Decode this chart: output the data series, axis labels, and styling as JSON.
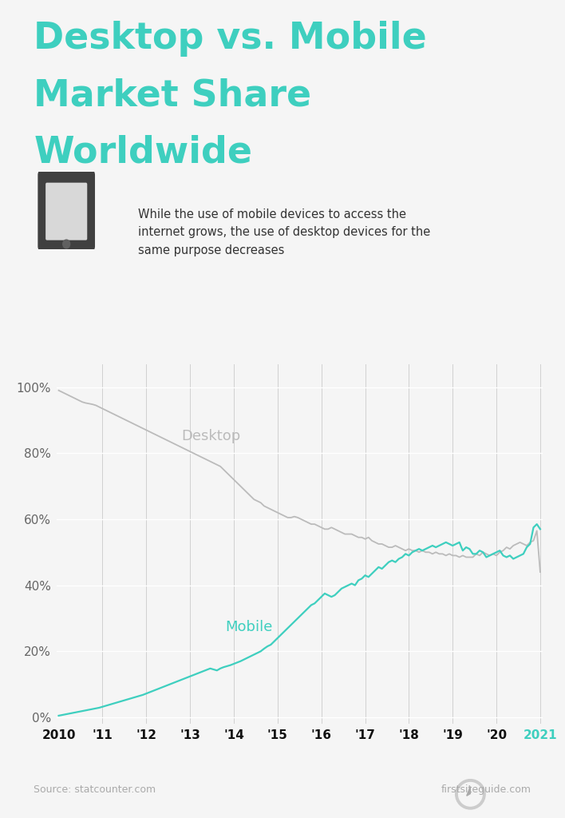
{
  "title_line1": "Desktop vs. Mobile",
  "title_line2": "Market Share",
  "title_line3": "Worldwide",
  "title_color": "#3ecfbf",
  "subtitle": "While the use of mobile devices to access the\ninternet grows, the use of desktop devices for the\nsame purpose decreases",
  "subtitle_color": "#333333",
  "background_color": "#f5f5f5",
  "desktop_color": "#bbbbbb",
  "mobile_color": "#3ecfbf",
  "source_text": "Source: statcounter.com",
  "brand_text": "firstsiteguide.com",
  "x_tick_labels": [
    "2010",
    "'11",
    "'12",
    "'13",
    "'14",
    "'15",
    "'16",
    "'17",
    "'18",
    "'19",
    "'20",
    "2021"
  ],
  "x_tick_colors": [
    "#111111",
    "#111111",
    "#111111",
    "#111111",
    "#111111",
    "#111111",
    "#111111",
    "#111111",
    "#111111",
    "#111111",
    "#111111",
    "#3ecfbf"
  ],
  "yticks": [
    0,
    20,
    40,
    60,
    80,
    100
  ],
  "ylim": [
    -2,
    107
  ],
  "desktop_data": [
    99.0,
    98.5,
    98.0,
    97.5,
    97.0,
    96.5,
    96.0,
    95.5,
    95.2,
    95.0,
    94.8,
    94.5,
    94.0,
    93.5,
    93.0,
    92.5,
    92.0,
    91.5,
    91.0,
    90.5,
    90.0,
    89.5,
    89.0,
    88.5,
    88.0,
    87.5,
    87.0,
    86.5,
    86.0,
    85.5,
    85.0,
    84.5,
    84.0,
    83.5,
    83.0,
    82.5,
    82.0,
    81.5,
    81.0,
    80.5,
    80.0,
    79.5,
    79.0,
    78.5,
    78.0,
    77.5,
    77.0,
    76.5,
    76.0,
    75.0,
    74.0,
    73.0,
    72.0,
    71.0,
    70.0,
    69.0,
    68.0,
    67.0,
    66.0,
    65.5,
    65.0,
    64.0,
    63.5,
    63.0,
    62.5,
    62.0,
    61.5,
    61.0,
    60.5,
    60.5,
    60.8,
    60.5,
    60.0,
    59.5,
    59.0,
    58.5,
    58.5,
    58.0,
    57.5,
    57.0,
    57.0,
    57.5,
    57.0,
    56.5,
    56.0,
    55.5,
    55.5,
    55.5,
    55.0,
    54.5,
    54.5,
    54.0,
    54.5,
    53.5,
    53.0,
    52.5,
    52.5,
    52.0,
    51.5,
    51.5,
    52.0,
    51.5,
    51.0,
    50.5,
    51.0,
    50.5,
    50.5,
    50.0,
    50.5,
    50.0,
    50.0,
    49.5,
    50.0,
    49.5,
    49.5,
    49.0,
    49.5,
    49.0,
    49.0,
    48.5,
    49.0,
    48.5,
    48.5,
    48.5,
    49.5,
    49.0,
    50.0,
    49.5,
    49.0,
    49.5,
    49.0,
    50.0,
    50.5,
    51.5,
    51.0,
    52.0,
    52.5,
    53.0,
    52.5,
    52.0,
    53.0,
    53.5,
    56.5,
    44.0
  ],
  "mobile_data": [
    0.5,
    0.7,
    0.9,
    1.1,
    1.3,
    1.5,
    1.7,
    1.9,
    2.1,
    2.3,
    2.5,
    2.7,
    2.9,
    3.2,
    3.5,
    3.8,
    4.1,
    4.4,
    4.7,
    5.0,
    5.3,
    5.6,
    5.9,
    6.2,
    6.5,
    6.8,
    7.2,
    7.6,
    8.0,
    8.4,
    8.8,
    9.2,
    9.6,
    10.0,
    10.4,
    10.8,
    11.2,
    11.6,
    12.0,
    12.4,
    12.8,
    13.2,
    13.6,
    14.0,
    14.4,
    14.8,
    14.5,
    14.2,
    14.8,
    15.2,
    15.5,
    15.8,
    16.2,
    16.6,
    17.0,
    17.5,
    18.0,
    18.5,
    19.0,
    19.5,
    20.0,
    20.8,
    21.5,
    22.0,
    23.0,
    24.0,
    25.0,
    26.0,
    27.0,
    28.0,
    29.0,
    30.0,
    31.0,
    32.0,
    33.0,
    34.0,
    34.5,
    35.5,
    36.5,
    37.5,
    37.0,
    36.5,
    37.0,
    38.0,
    39.0,
    39.5,
    40.0,
    40.5,
    40.0,
    41.5,
    42.0,
    43.0,
    42.5,
    43.5,
    44.5,
    45.5,
    45.0,
    46.0,
    47.0,
    47.5,
    47.0,
    48.0,
    48.5,
    49.5,
    49.0,
    50.0,
    50.5,
    51.0,
    50.5,
    51.0,
    51.5,
    52.0,
    51.5,
    52.0,
    52.5,
    53.0,
    52.5,
    52.0,
    52.5,
    53.0,
    50.5,
    51.5,
    51.0,
    49.5,
    49.5,
    50.5,
    50.0,
    48.5,
    49.0,
    49.5,
    50.0,
    50.5,
    49.0,
    48.5,
    49.0,
    48.0,
    48.5,
    49.0,
    49.5,
    51.5,
    52.5,
    57.5,
    58.5,
    57.0
  ]
}
